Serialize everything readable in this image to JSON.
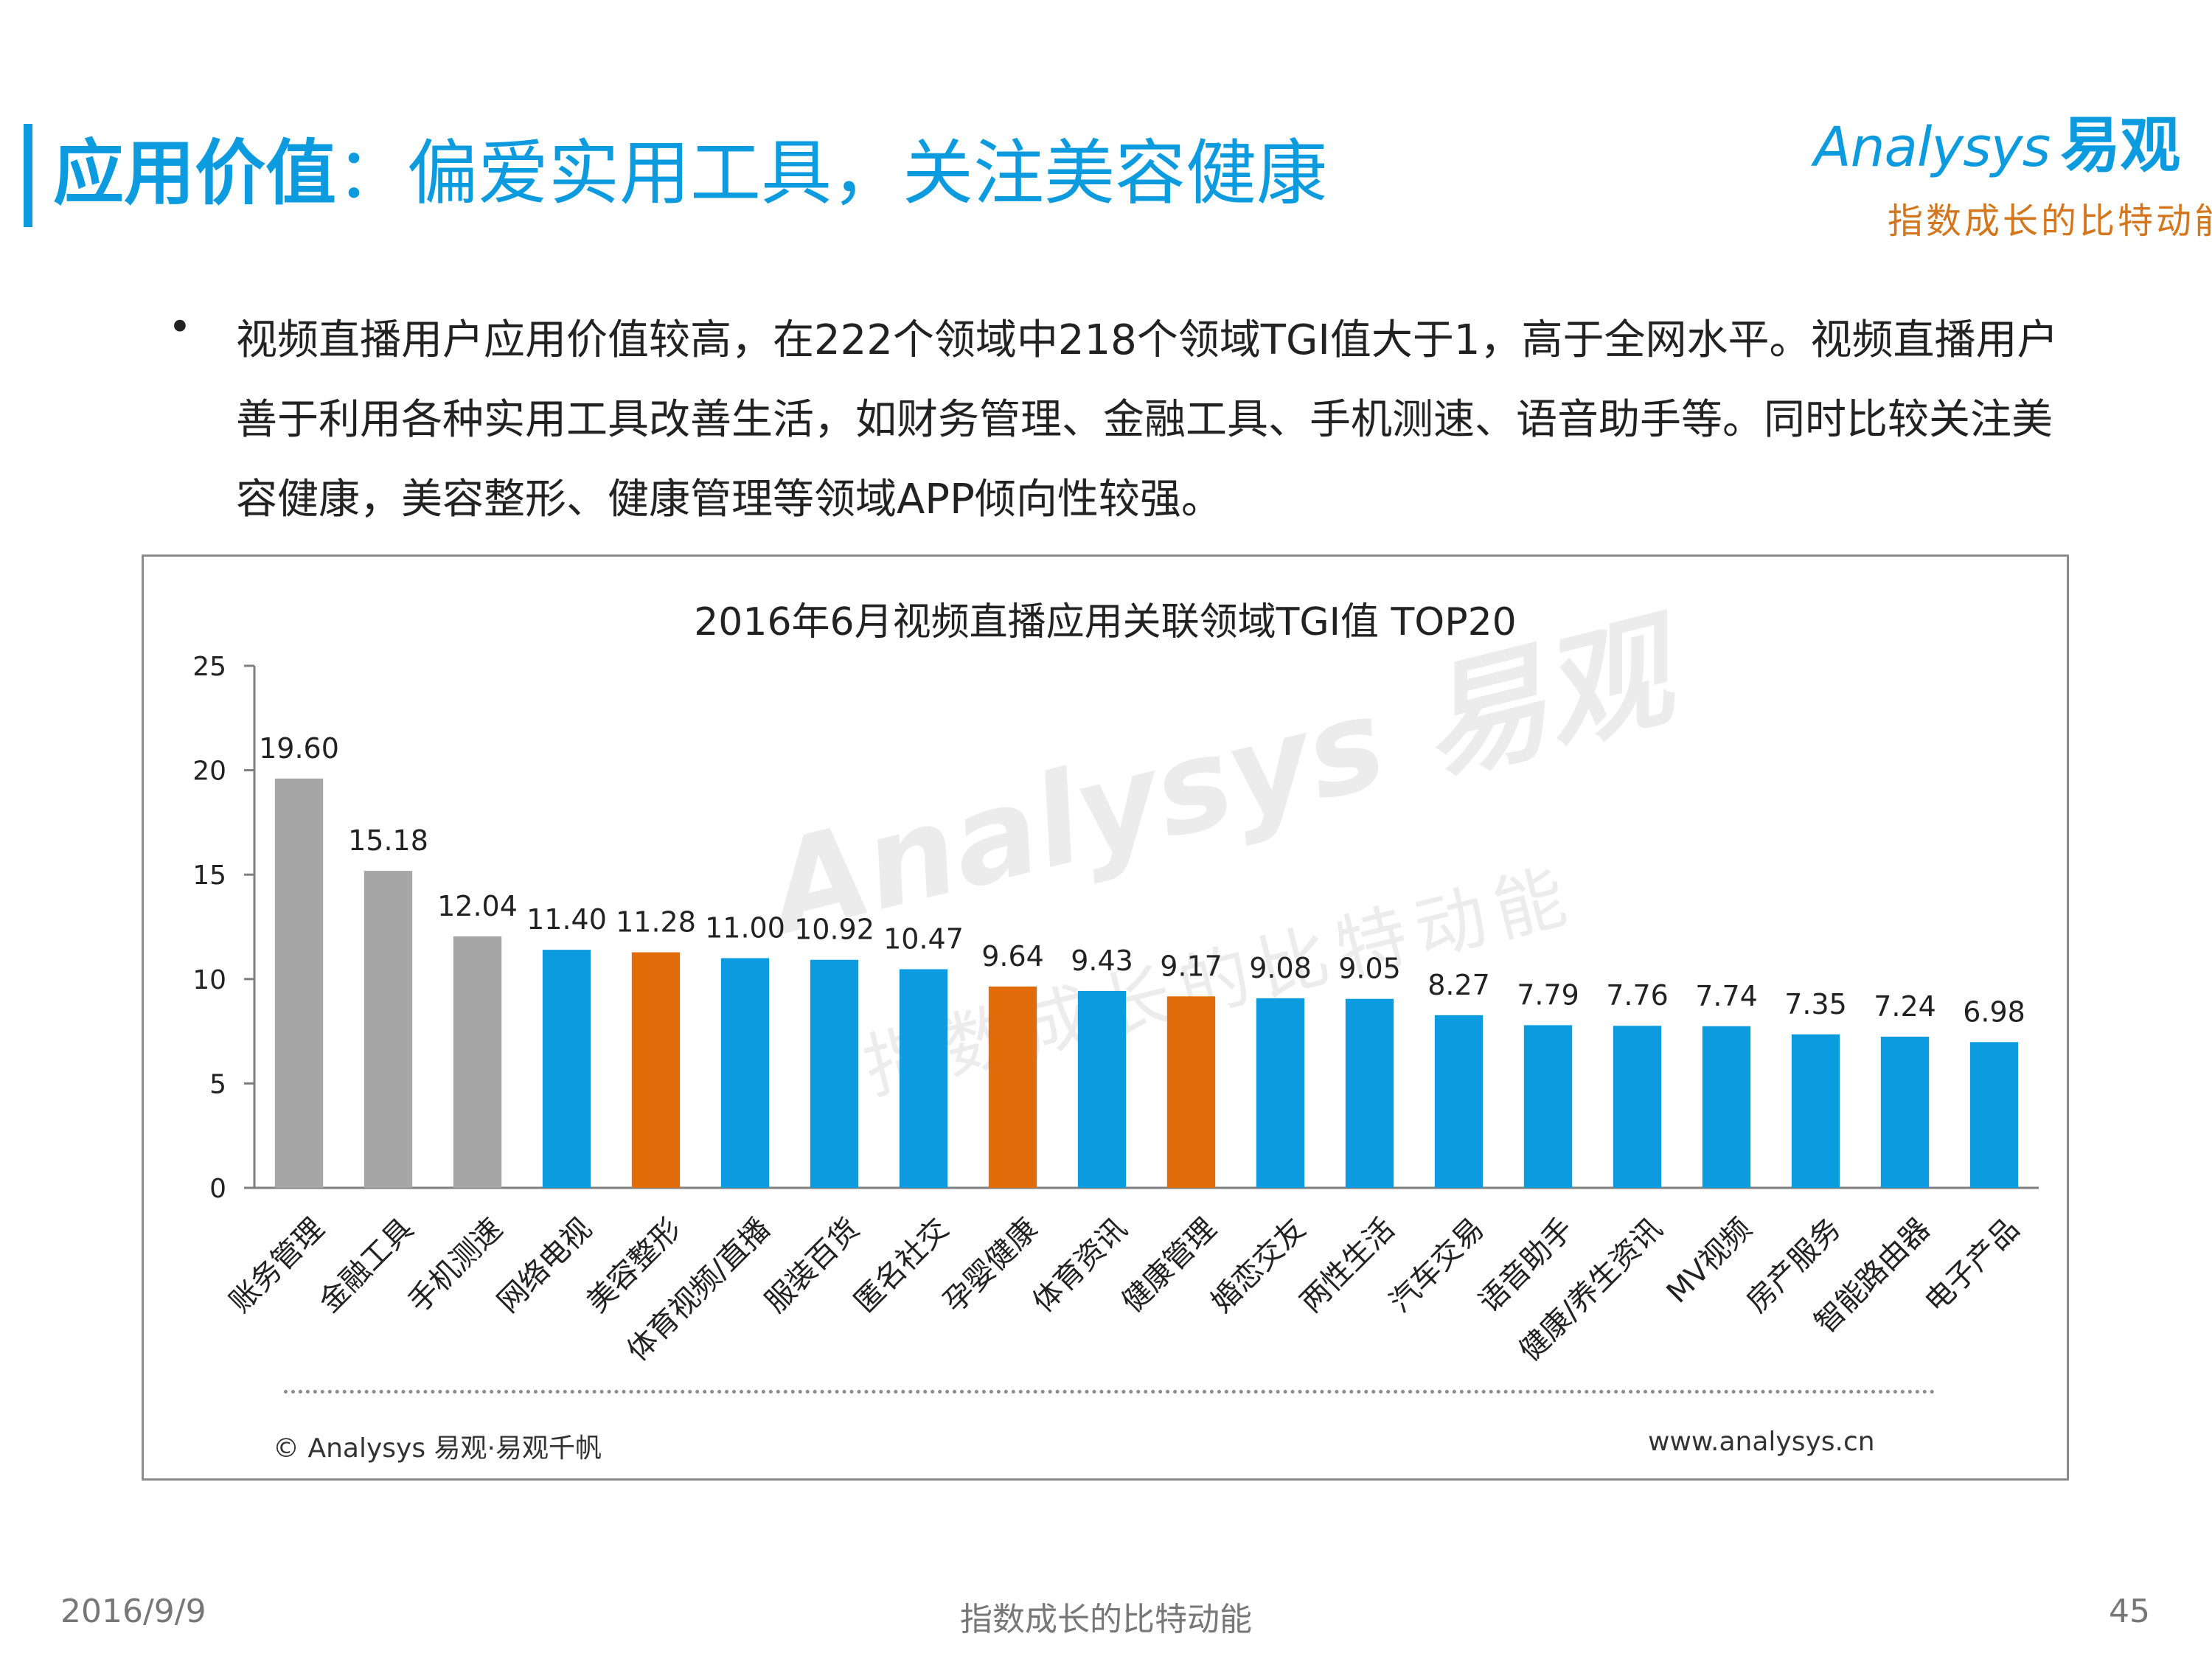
{
  "header": {
    "title_bold": "应用价值",
    "title_rest": "：偏爱实用工具，关注美容健康"
  },
  "logo": {
    "brand": "Analysys",
    "brand_cn": "易观",
    "slogan": "指数成长的比特动能"
  },
  "bullet": {
    "text": "视频直播用户应用价值较高，在222个领域中218个领域TGI值大于1，高于全网水平。视频直播用户善于利用各种实用工具改善生活，如财务管理、金融工具、手机测速、语音助手等。同时比较关注美容健康，美容整形、健康管理等领域APP倾向性较强。"
  },
  "watermark": {
    "main": "Analysys 易观",
    "sub": "指数成长的比特动能"
  },
  "chart_data": {
    "type": "bar",
    "title": "2016年6月视频直播应用关联领域TGI值  TOP20",
    "categories": [
      "账务管理",
      "金融工具",
      "手机测速",
      "网络电视",
      "美容整形",
      "体育视频/直播",
      "服装百货",
      "匿名社交",
      "孕婴健康",
      "体育资讯",
      "健康管理",
      "婚恋交友",
      "两性生活",
      "汽车交易",
      "语音助手",
      "健康/养生资讯",
      "MV视频",
      "房产服务",
      "智能路由器",
      "电子产品"
    ],
    "values": [
      19.6,
      15.18,
      12.04,
      11.4,
      11.28,
      11.0,
      10.92,
      10.47,
      9.64,
      9.43,
      9.17,
      9.08,
      9.05,
      8.27,
      7.79,
      7.76,
      7.74,
      7.35,
      7.24,
      6.98
    ],
    "value_labels": [
      "19.60",
      "15.18",
      "12.04",
      "11.40",
      "11.28",
      "11.00",
      "10.92",
      "10.47",
      "9.64",
      "9.43",
      "9.17",
      "9.08",
      "9.05",
      "8.27",
      "7.79",
      "7.76",
      "7.74",
      "7.35",
      "7.24",
      "6.98"
    ],
    "bar_colors": [
      "#a6a6a6",
      "#a6a6a6",
      "#a6a6a6",
      "#0d9be0",
      "#e36c0a",
      "#0d9be0",
      "#0d9be0",
      "#0d9be0",
      "#e36c0a",
      "#0d9be0",
      "#e36c0a",
      "#0d9be0",
      "#0d9be0",
      "#0d9be0",
      "#0d9be0",
      "#0d9be0",
      "#0d9be0",
      "#0d9be0",
      "#0d9be0",
      "#0d9be0"
    ],
    "ylim": [
      0,
      25
    ],
    "yticks": [
      0,
      5,
      10,
      15,
      20,
      25
    ],
    "xlabel": "",
    "ylabel": "",
    "grid": false,
    "legend": "none"
  },
  "chart_footer": {
    "source": "© Analysys 易观·易观千帆",
    "url": "www.analysys.cn"
  },
  "footer": {
    "date": "2016/9/9",
    "slogan": "指数成长的比特动能",
    "page": "45"
  },
  "colors": {
    "accent_blue": "#0d9be0",
    "highlight_orange": "#e36c0a",
    "tool_gray": "#a6a6a6",
    "logo_orange": "#d4761e"
  }
}
